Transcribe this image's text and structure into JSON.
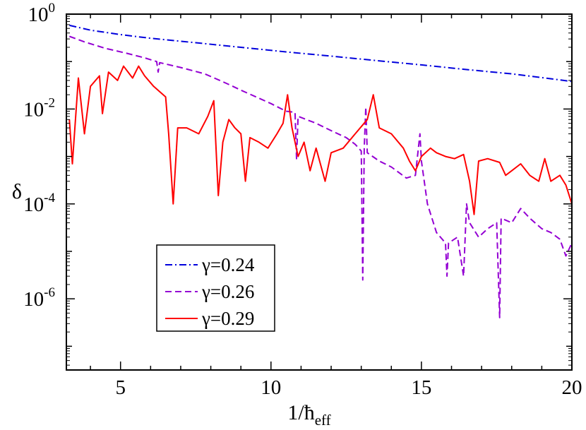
{
  "chart_data": {
    "type": "line",
    "title": "",
    "xlabel": "1/ħ",
    "xlabel_sub": "eff",
    "ylabel": "δ",
    "xlim": [
      3.2,
      20
    ],
    "ylim_exponent": [
      -7.5,
      0
    ],
    "yscale": "log",
    "x_ticks": [
      {
        "value": 5,
        "label": "5"
      },
      {
        "value": 10,
        "label": "10"
      },
      {
        "value": 15,
        "label": "15"
      },
      {
        "value": 20,
        "label": "20"
      }
    ],
    "y_ticks": [
      {
        "exp": 0,
        "base": "10",
        "sup": "0"
      },
      {
        "exp": -2,
        "base": "10",
        "sup": "-2"
      },
      {
        "exp": -4,
        "base": "10",
        "sup": "-4"
      },
      {
        "exp": -6,
        "base": "10",
        "sup": "-6"
      }
    ],
    "grid": false,
    "legend_position": "bottom-left",
    "series": [
      {
        "name": "γ=0.24",
        "color": "#0000dd",
        "style": "dash-dot",
        "points": [
          [
            3.3,
            0.58
          ],
          [
            4.0,
            0.46
          ],
          [
            5.0,
            0.37
          ],
          [
            6.0,
            0.31
          ],
          [
            7.5,
            0.25
          ],
          [
            9.0,
            0.2
          ],
          [
            10.5,
            0.16
          ],
          [
            12.0,
            0.13
          ],
          [
            13.5,
            0.105
          ],
          [
            15.0,
            0.085
          ],
          [
            16.5,
            0.068
          ],
          [
            18.0,
            0.055
          ],
          [
            19.0,
            0.046
          ],
          [
            20.0,
            0.038
          ]
        ]
      },
      {
        "name": "γ=0.26",
        "color": "#9400d3",
        "style": "dashed",
        "points": [
          [
            3.3,
            0.34
          ],
          [
            3.8,
            0.26
          ],
          [
            4.5,
            0.19
          ],
          [
            5.2,
            0.15
          ],
          [
            5.8,
            0.12
          ],
          [
            6.2,
            0.1
          ],
          [
            6.25,
            0.06
          ],
          [
            6.3,
            0.095
          ],
          [
            7.0,
            0.075
          ],
          [
            7.8,
            0.055
          ],
          [
            8.3,
            0.04
          ],
          [
            8.6,
            0.033
          ],
          [
            9.0,
            0.025
          ],
          [
            9.5,
            0.018
          ],
          [
            10.0,
            0.013
          ],
          [
            10.5,
            0.009
          ],
          [
            10.8,
            0.0085
          ],
          [
            10.85,
            0.0009
          ],
          [
            10.9,
            0.007
          ],
          [
            11.5,
            0.005
          ],
          [
            12.0,
            0.0035
          ],
          [
            12.5,
            0.0025
          ],
          [
            12.8,
            0.0018
          ],
          [
            13.0,
            0.0013
          ],
          [
            13.05,
            2.5e-06
          ],
          [
            13.1,
            0.0015
          ],
          [
            13.15,
            0.011
          ],
          [
            13.2,
            0.0012
          ],
          [
            13.6,
            0.0008
          ],
          [
            14.0,
            0.0006
          ],
          [
            14.5,
            0.00035
          ],
          [
            14.8,
            0.0004
          ],
          [
            14.95,
            0.003
          ],
          [
            15.0,
            0.0008
          ],
          [
            15.2,
            0.0001
          ],
          [
            15.5,
            2.5e-05
          ],
          [
            15.8,
            1.5e-05
          ],
          [
            15.85,
            3e-06
          ],
          [
            15.9,
            1.5e-05
          ],
          [
            16.2,
            2e-05
          ],
          [
            16.4,
            3e-06
          ],
          [
            16.5,
            0.0001
          ],
          [
            16.6,
            4e-05
          ],
          [
            16.9,
            2e-05
          ],
          [
            17.2,
            3e-05
          ],
          [
            17.5,
            4e-05
          ],
          [
            17.6,
            4e-07
          ],
          [
            17.65,
            5e-05
          ],
          [
            18.0,
            4e-05
          ],
          [
            18.3,
            8e-05
          ],
          [
            18.6,
            5e-05
          ],
          [
            19.0,
            3e-05
          ],
          [
            19.3,
            2.5e-05
          ],
          [
            19.6,
            1.8e-05
          ],
          [
            19.8,
            8e-06
          ],
          [
            20.0,
            1.5e-05
          ]
        ]
      },
      {
        "name": "γ=0.29",
        "color": "#ff0000",
        "style": "solid",
        "points": [
          [
            3.3,
            0.006
          ],
          [
            3.4,
            0.0007
          ],
          [
            3.6,
            0.045
          ],
          [
            3.8,
            0.003
          ],
          [
            4.0,
            0.03
          ],
          [
            4.3,
            0.05
          ],
          [
            4.4,
            0.008
          ],
          [
            4.6,
            0.06
          ],
          [
            4.9,
            0.04
          ],
          [
            5.1,
            0.08
          ],
          [
            5.4,
            0.045
          ],
          [
            5.6,
            0.08
          ],
          [
            5.8,
            0.05
          ],
          [
            6.1,
            0.03
          ],
          [
            6.5,
            0.018
          ],
          [
            6.6,
            0.003
          ],
          [
            6.75,
            0.0001
          ],
          [
            6.9,
            0.004
          ],
          [
            7.2,
            0.004
          ],
          [
            7.6,
            0.003
          ],
          [
            7.9,
            0.007
          ],
          [
            8.1,
            0.015
          ],
          [
            8.25,
            0.00015
          ],
          [
            8.4,
            0.002
          ],
          [
            8.6,
            0.006
          ],
          [
            8.8,
            0.004
          ],
          [
            9.0,
            0.003
          ],
          [
            9.15,
            0.0003
          ],
          [
            9.3,
            0.0025
          ],
          [
            9.6,
            0.002
          ],
          [
            9.9,
            0.0015
          ],
          [
            10.2,
            0.003
          ],
          [
            10.4,
            0.005
          ],
          [
            10.55,
            0.02
          ],
          [
            10.7,
            0.004
          ],
          [
            10.9,
            0.001
          ],
          [
            11.1,
            0.002
          ],
          [
            11.3,
            0.0005
          ],
          [
            11.5,
            0.0015
          ],
          [
            11.8,
            0.0003
          ],
          [
            12.0,
            0.0012
          ],
          [
            12.4,
            0.0015
          ],
          [
            12.8,
            0.003
          ],
          [
            13.2,
            0.006
          ],
          [
            13.4,
            0.02
          ],
          [
            13.6,
            0.004
          ],
          [
            14.0,
            0.003
          ],
          [
            14.4,
            0.0015
          ],
          [
            14.6,
            0.0008
          ],
          [
            14.8,
            0.0005
          ],
          [
            15.0,
            0.001
          ],
          [
            15.3,
            0.0015
          ],
          [
            15.5,
            0.0012
          ],
          [
            15.8,
            0.001
          ],
          [
            16.1,
            0.0009
          ],
          [
            16.4,
            0.0011
          ],
          [
            16.6,
            0.0003
          ],
          [
            16.75,
            6e-05
          ],
          [
            16.9,
            0.0008
          ],
          [
            17.2,
            0.0009
          ],
          [
            17.6,
            0.00075
          ],
          [
            17.8,
            0.0004
          ],
          [
            18.0,
            0.0005
          ],
          [
            18.3,
            0.0007
          ],
          [
            18.6,
            0.0004
          ],
          [
            18.9,
            0.0003
          ],
          [
            19.1,
            0.0009
          ],
          [
            19.3,
            0.0003
          ],
          [
            19.6,
            0.0004
          ],
          [
            19.8,
            0.00025
          ],
          [
            20.0,
            0.0001
          ]
        ]
      }
    ]
  }
}
